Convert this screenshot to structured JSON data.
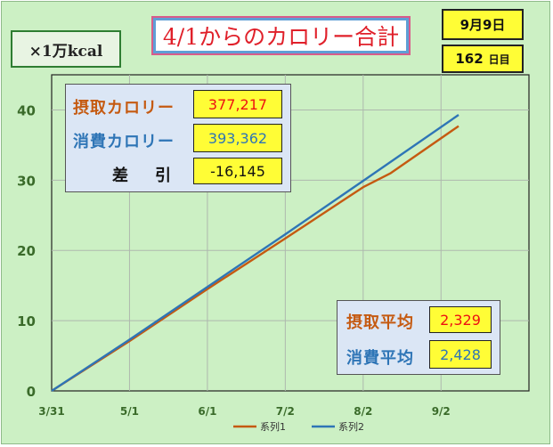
{
  "title": "4/1からのカロリー合計",
  "unit_label": "×1万kcal",
  "date_label": "9月9日",
  "day_count": "162",
  "day_suffix": "日目",
  "totals": {
    "intake_label": "摂取カロリー",
    "intake_value": "377,217",
    "burn_label": "消費カロリー",
    "burn_value": "393,362",
    "diff_label": "差　引",
    "diff_value": "-16,145"
  },
  "averages": {
    "intake_label": "摂取平均",
    "intake_value": "2,329",
    "burn_label": "消費平均",
    "burn_value": "2,428"
  },
  "colors": {
    "series1": "#c55a11",
    "series2": "#2e75b6",
    "background": "#ccf0c4",
    "value_box": "#fffd36"
  },
  "chart_data": {
    "type": "line",
    "ylim": [
      0,
      45
    ],
    "yticks": [
      0,
      10,
      20,
      30,
      40
    ],
    "xlim": [
      0,
      190
    ],
    "xticks": [
      {
        "label": "3/31",
        "day": 0
      },
      {
        "label": "5/1",
        "day": 31
      },
      {
        "label": "6/1",
        "day": 62
      },
      {
        "label": "7/2",
        "day": 93
      },
      {
        "label": "8/2",
        "day": 124
      },
      {
        "label": "9/2",
        "day": 155
      }
    ],
    "grid": true,
    "legend_position": "bottom",
    "series": [
      {
        "name": "系列1",
        "color": "#c55a11",
        "x": [
          0,
          31,
          62,
          93,
          124,
          135,
          162
        ],
        "values": [
          0,
          7.1,
          14.5,
          21.7,
          29.0,
          31.0,
          37.7
        ]
      },
      {
        "name": "系列2",
        "color": "#2e75b6",
        "x": [
          0,
          31,
          62,
          93,
          124,
          162
        ],
        "values": [
          0,
          7.3,
          14.8,
          22.3,
          29.9,
          39.3
        ]
      }
    ]
  }
}
